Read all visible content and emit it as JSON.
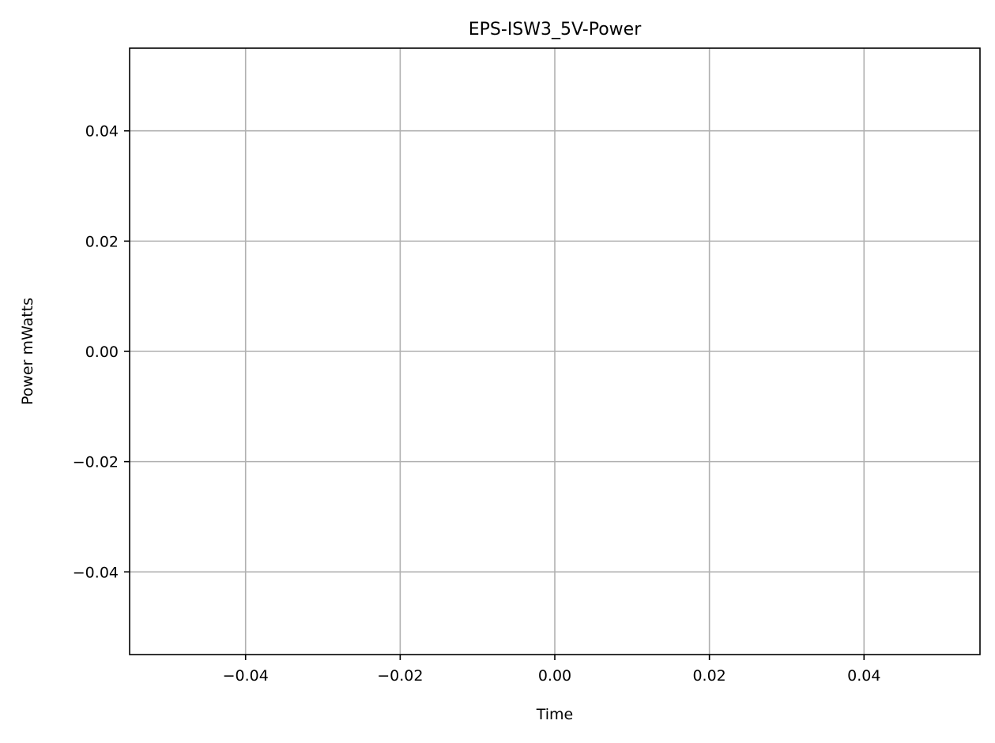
{
  "chart_data": {
    "type": "line",
    "title": "EPS-ISW3_5V-Power",
    "xlabel": "Time",
    "ylabel": "Power mWatts",
    "xlim": [
      -0.055,
      0.055
    ],
    "ylim": [
      -0.055,
      0.055
    ],
    "x_ticks": [
      -0.04,
      -0.02,
      0.0,
      0.02,
      0.04
    ],
    "x_tick_labels": [
      "−0.04",
      "−0.02",
      "0.00",
      "0.02",
      "0.04"
    ],
    "y_ticks": [
      -0.04,
      -0.02,
      0.0,
      0.02,
      0.04
    ],
    "y_tick_labels": [
      "−0.04",
      "−0.02",
      "0.00",
      "0.02",
      "0.04"
    ],
    "grid": true,
    "series": [
      {
        "name": "EPS-ISW3_5V-Power",
        "x": [],
        "y": []
      }
    ],
    "colors": {
      "grid": "#b0b0b0",
      "axes": "#000000",
      "background": "#ffffff",
      "line": "#1f77b4"
    }
  }
}
